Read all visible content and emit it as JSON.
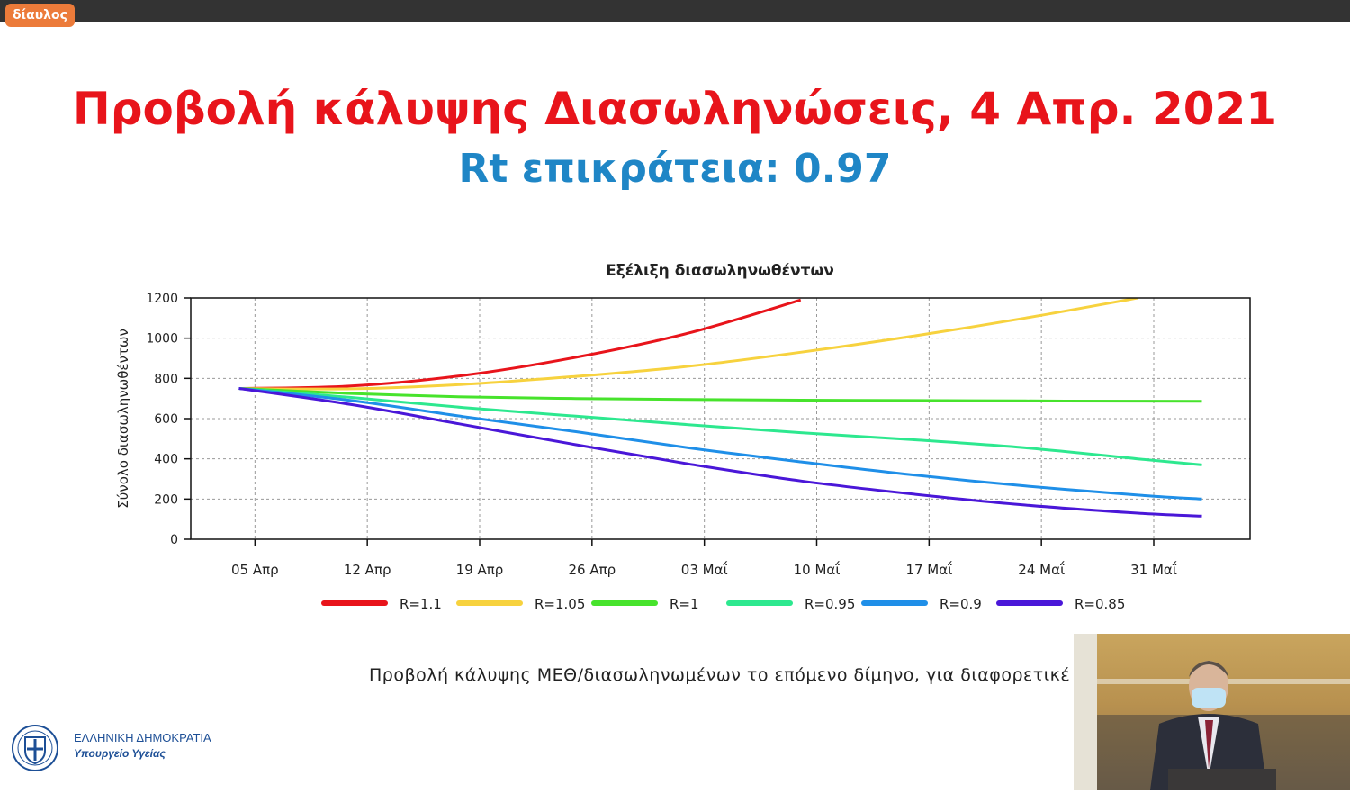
{
  "app": {
    "brand": "δίαυλος"
  },
  "slide": {
    "title": "Προβολή κάλυψης Διασωληνώσεις, 4 Απρ. 2021",
    "subtitle": "Rt επικράτεια: 0.97",
    "caption": "Προβολή κάλυψης ΜΕΘ/διασωληνωμένων το επόμενο δίμηνο, για διαφορετικέ",
    "colors": {
      "title": "#e8141b",
      "subtitle": "#1f86c6"
    }
  },
  "footer": {
    "org_name": "ΕΛΛΗΝΙΚΗ ΔΗΜΟΚΡΑΤΙΑ",
    "org_dept": "Υπουργείο Υγείας"
  },
  "chart_data": {
    "type": "line",
    "title": "Εξέλιξη διασωληνωθέντων",
    "xlabel": "",
    "ylabel": "Σύνολο διασωληνωθέντων",
    "ylim": [
      0,
      1200
    ],
    "yticks": [
      0,
      200,
      400,
      600,
      800,
      1000,
      1200
    ],
    "xlim": [
      "2021-04-01",
      "2021-06-06"
    ],
    "xticks": [
      {
        "date": "2021-04-05",
        "label": "05 Απρ"
      },
      {
        "date": "2021-04-12",
        "label": "12 Απρ"
      },
      {
        "date": "2021-04-19",
        "label": "19 Απρ"
      },
      {
        "date": "2021-04-26",
        "label": "26 Απρ"
      },
      {
        "date": "2021-05-03",
        "label": "03 Μαΐ"
      },
      {
        "date": "2021-05-10",
        "label": "10 Μαΐ"
      },
      {
        "date": "2021-05-17",
        "label": "17 Μαΐ"
      },
      {
        "date": "2021-05-24",
        "label": "24 Μαΐ"
      },
      {
        "date": "2021-05-31",
        "label": "31 Μαΐ"
      }
    ],
    "grid": true,
    "legend_position": "bottom",
    "x": [
      "2021-04-04",
      "2021-04-11",
      "2021-04-18",
      "2021-04-25",
      "2021-05-02",
      "2021-05-09",
      "2021-05-16",
      "2021-05-23",
      "2021-05-30",
      "2021-06-03"
    ],
    "series": [
      {
        "name": "R=1.1",
        "color": "#e8141b",
        "values": [
          750,
          762,
          815,
          905,
          1025,
          1190,
          null,
          null,
          null,
          null
        ]
      },
      {
        "name": "R=1.05",
        "color": "#f7d23e",
        "values": [
          750,
          748,
          770,
          810,
          860,
          930,
          1010,
          1100,
          1200,
          null
        ]
      },
      {
        "name": "R=1",
        "color": "#47e32c",
        "values": [
          750,
          725,
          708,
          700,
          695,
          692,
          690,
          688,
          687,
          686
        ]
      },
      {
        "name": "R=0.95",
        "color": "#2de88f",
        "values": [
          750,
          705,
          655,
          612,
          570,
          530,
          495,
          455,
          400,
          370
        ]
      },
      {
        "name": "R=0.9",
        "color": "#1f8fe8",
        "values": [
          750,
          690,
          610,
          535,
          455,
          385,
          320,
          265,
          220,
          200
        ]
      },
      {
        "name": "R=0.85",
        "color": "#4a17d8",
        "values": [
          750,
          670,
          570,
          470,
          375,
          290,
          225,
          170,
          130,
          115
        ]
      }
    ]
  }
}
